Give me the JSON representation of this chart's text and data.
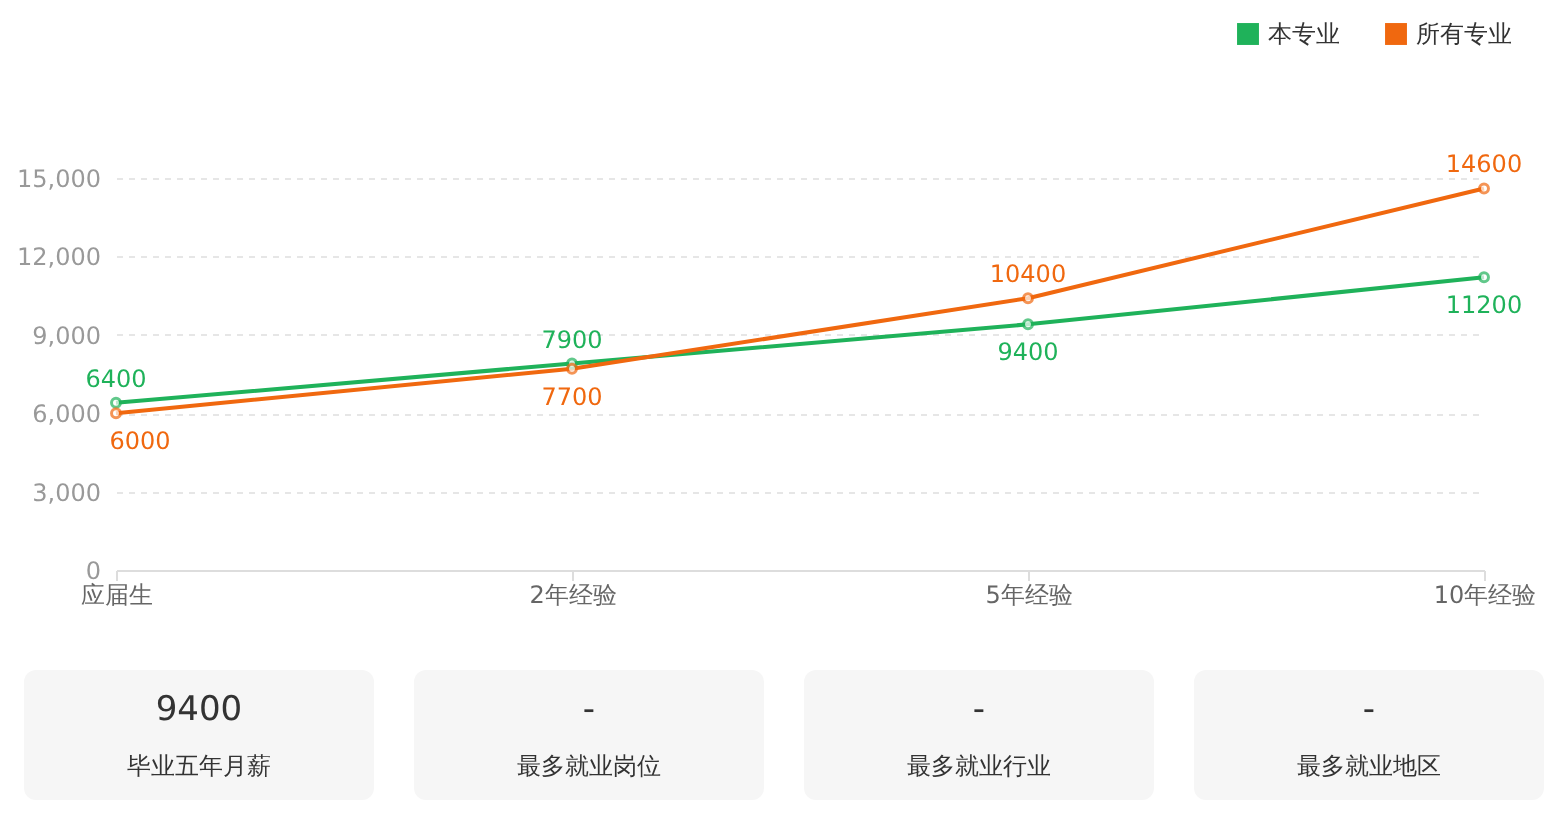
{
  "chart_data": {
    "type": "line",
    "categories": [
      "应届生",
      "2年经验",
      "5年经验",
      "10年经验"
    ],
    "series": [
      {
        "name": "本专业",
        "color": "#1fb25a",
        "values": [
          6400,
          7900,
          9400,
          11200
        ]
      },
      {
        "name": "所有专业",
        "color": "#f0680f",
        "values": [
          6000,
          7700,
          10400,
          14600
        ]
      }
    ],
    "ylim": [
      0,
      15000
    ],
    "yticks": [
      0,
      {
        "value": 3000,
        "label": "3,000"
      },
      {
        "value": 6000,
        "label": "6,000"
      },
      {
        "value": 9000,
        "label": "9,000"
      },
      {
        "value": 12000,
        "label": "12,000"
      },
      {
        "value": 15000,
        "label": "15,000"
      }
    ],
    "grid": "y",
    "legend": "top right",
    "marker": "circle",
    "line_style": "solid",
    "data_labels": true,
    "annotations": [
      "9400",
      "毕业五年月薪",
      "-",
      "最多就业岗位",
      "-",
      "最多就业行业",
      "-",
      "最多就业地区"
    ]
  }
}
